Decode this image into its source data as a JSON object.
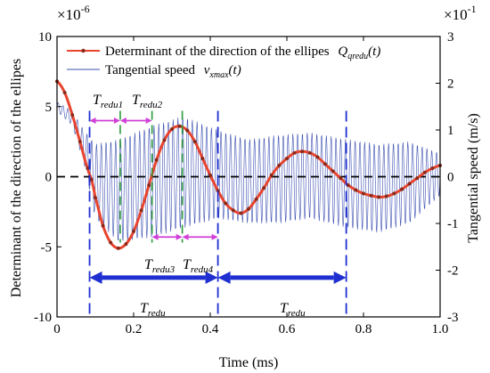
{
  "chart_data": {
    "type": "line",
    "xlabel": "Time (ms)",
    "ylabel_left": "Determinant of the direction of the ellipes",
    "ylabel_right": "Tangential speed (m/s)",
    "xlim": [
      0,
      1.0
    ],
    "ylim_left": [
      -10,
      10
    ],
    "ylim_right": [
      -3,
      3
    ],
    "x_ticks": [
      "0",
      "0.2",
      "0.4",
      "0.6",
      "0.8",
      "1.0"
    ],
    "y_ticks_left": [
      "-10",
      "-5",
      "0",
      "5",
      "10"
    ],
    "y_ticks_right": [
      "-3",
      "-2",
      "-1",
      "0",
      "1",
      "2",
      "3"
    ],
    "left_multiplier_base": "×10",
    "left_multiplier_exp": "-6",
    "right_multiplier_base": "×10",
    "right_multiplier_exp": "-1",
    "legend_position": "top-left",
    "series": [
      {
        "name_text": "Determinant of the direction of the ellipes",
        "name_symbol": "Q",
        "name_sub": "qredu",
        "name_arg": "(t)",
        "color": "#e8442e",
        "marker_color": "#8b2a1a",
        "axis": "left",
        "x": [
          0,
          0.02,
          0.04,
          0.06,
          0.08,
          0.09,
          0.1,
          0.12,
          0.14,
          0.16,
          0.18,
          0.2,
          0.22,
          0.24,
          0.26,
          0.28,
          0.3,
          0.32,
          0.34,
          0.36,
          0.38,
          0.4,
          0.42,
          0.44,
          0.46,
          0.48,
          0.5,
          0.52,
          0.54,
          0.56,
          0.58,
          0.6,
          0.62,
          0.64,
          0.66,
          0.68,
          0.7,
          0.72,
          0.74,
          0.76,
          0.78,
          0.8,
          0.82,
          0.84,
          0.86,
          0.88,
          0.9,
          0.92,
          0.94,
          0.96,
          0.98,
          1.0
        ],
        "y": [
          6.8,
          6.0,
          4.4,
          2.5,
          0.6,
          -0.2,
          -1.5,
          -3.5,
          -4.7,
          -5.1,
          -4.8,
          -3.9,
          -2.4,
          -0.6,
          1.2,
          2.6,
          3.4,
          3.6,
          3.3,
          2.5,
          1.3,
          0.1,
          -1.0,
          -1.9,
          -2.4,
          -2.6,
          -2.3,
          -1.6,
          -0.8,
          0.1,
          0.8,
          1.3,
          1.7,
          1.8,
          1.7,
          1.4,
          0.9,
          0.4,
          -0.1,
          -0.6,
          -0.95,
          -1.2,
          -1.35,
          -1.45,
          -1.4,
          -1.2,
          -0.9,
          -0.5,
          -0.1,
          0.3,
          0.6,
          0.8
        ]
      },
      {
        "name_text": "Tangential speed",
        "name_symbol": "v",
        "name_sub": "xmax",
        "name_arg": "(t)",
        "color": "#3a4fb0",
        "axis": "right",
        "envelope_x": [
          0,
          0.04,
          0.07,
          0.1,
          0.16,
          0.25,
          0.33,
          0.42,
          0.5,
          0.58,
          0.66,
          0.76,
          0.84,
          0.92,
          1.0
        ],
        "envelope_upper": [
          1.6,
          1.4,
          1.0,
          0.7,
          0.8,
          1.1,
          1.3,
          1.0,
          0.8,
          0.9,
          0.95,
          0.8,
          0.7,
          0.75,
          0.5
        ],
        "envelope_lower": [
          1.4,
          1.1,
          0.3,
          -0.9,
          -1.4,
          -1.3,
          -1.1,
          -0.9,
          -1.0,
          -1.0,
          -0.9,
          -1.1,
          -1.2,
          -1.0,
          -0.4
        ]
      }
    ],
    "annotations": {
      "period_lines_x": [
        0.085,
        0.42,
        0.755
      ],
      "quarter_lines_x": [
        0.165,
        0.248,
        0.327
      ],
      "t_redu1": {
        "base": "T",
        "sub": "redu1"
      },
      "t_redu2": {
        "base": "T",
        "sub": "redu2"
      },
      "t_redu3": {
        "base": "T",
        "sub": "redu3"
      },
      "t_redu4": {
        "base": "T",
        "sub": "redu4"
      },
      "t_redu_a": {
        "base": "T",
        "sub": "redu"
      },
      "t_redu_b": {
        "base": "T",
        "sub": "redu"
      },
      "arrow_color": "#1f2fd0",
      "quarter_arrow_color": "#d040d8",
      "quarter_line_color": "#2a9a3a"
    }
  }
}
